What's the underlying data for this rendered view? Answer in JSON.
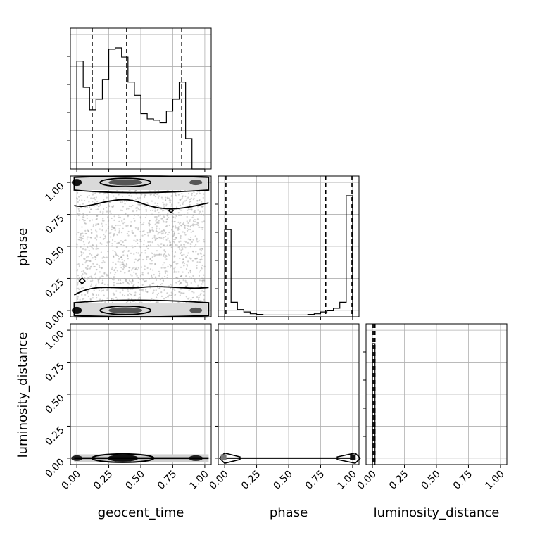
{
  "figure": {
    "type": "corner_plot"
  },
  "chart_data": {
    "type": "corner",
    "parameters": [
      "geocent_time",
      "phase",
      "luminosity_distance"
    ],
    "axis_labels": {
      "x": [
        "geocent_time",
        "phase",
        "luminosity_distance"
      ],
      "y": [
        "phase",
        "luminosity_distance"
      ]
    },
    "tick_labels": [
      "0.00",
      "0.25",
      "0.50",
      "0.75",
      "1.00"
    ],
    "tick_values": [
      0,
      0.25,
      0.5,
      0.75,
      1.0
    ],
    "grid": true,
    "diagonal": [
      {
        "name": "geocent_time",
        "type": "histogram",
        "xlim": [
          -0.05,
          1.05
        ],
        "bin_edges": [
          -0.0,
          0.05,
          0.1,
          0.15,
          0.2,
          0.25,
          0.3,
          0.35,
          0.4,
          0.45,
          0.5,
          0.55,
          0.6,
          0.65,
          0.7,
          0.75,
          0.8,
          0.85,
          0.9,
          0.95,
          1.0
        ],
        "counts": [
          0.82,
          0.62,
          0.45,
          0.53,
          0.68,
          0.91,
          0.92,
          0.85,
          0.66,
          0.56,
          0.42,
          0.38,
          0.37,
          0.35,
          0.44,
          0.53,
          0.66,
          0.23,
          0.0,
          0.0
        ],
        "quantiles": [
          0.12,
          0.39,
          0.82
        ]
      },
      {
        "name": "phase",
        "type": "histogram",
        "xlim": [
          -0.05,
          1.05
        ],
        "bin_edges": [
          -0.0,
          0.05,
          0.1,
          0.15,
          0.2,
          0.25,
          0.3,
          0.35,
          0.4,
          0.45,
          0.5,
          0.55,
          0.6,
          0.65,
          0.7,
          0.75,
          0.8,
          0.85,
          0.9,
          0.95,
          1.0
        ],
        "counts": [
          0.72,
          0.12,
          0.06,
          0.04,
          0.025,
          0.02,
          0.015,
          0.015,
          0.015,
          0.015,
          0.015,
          0.015,
          0.015,
          0.02,
          0.025,
          0.04,
          0.05,
          0.07,
          0.12,
          1.0
        ],
        "quantiles": [
          0.01,
          0.79,
          0.995
        ]
      },
      {
        "name": "luminosity_distance",
        "type": "histogram",
        "xlim": [
          -0.05,
          1.05
        ],
        "bin_edges": [
          0.0,
          0.01,
          0.02
        ],
        "counts": [
          1.0,
          1.0
        ],
        "quantiles": [
          0.0,
          0.01,
          0.02
        ]
      }
    ],
    "off_diagonal": [
      {
        "x": "geocent_time",
        "y": "phase",
        "type": "contour",
        "description_points": "uniform scatter over [0,1]x[0,1], density concentrated near phase 0 and 1"
      },
      {
        "x": "geocent_time",
        "y": "luminosity_distance",
        "type": "contour",
        "description_points": "concentrated at luminosity_distance 0"
      },
      {
        "x": "phase",
        "y": "luminosity_distance",
        "type": "contour",
        "description_points": "concentrated at luminosity_distance 0, peaks at phase 0 and 1"
      }
    ]
  }
}
